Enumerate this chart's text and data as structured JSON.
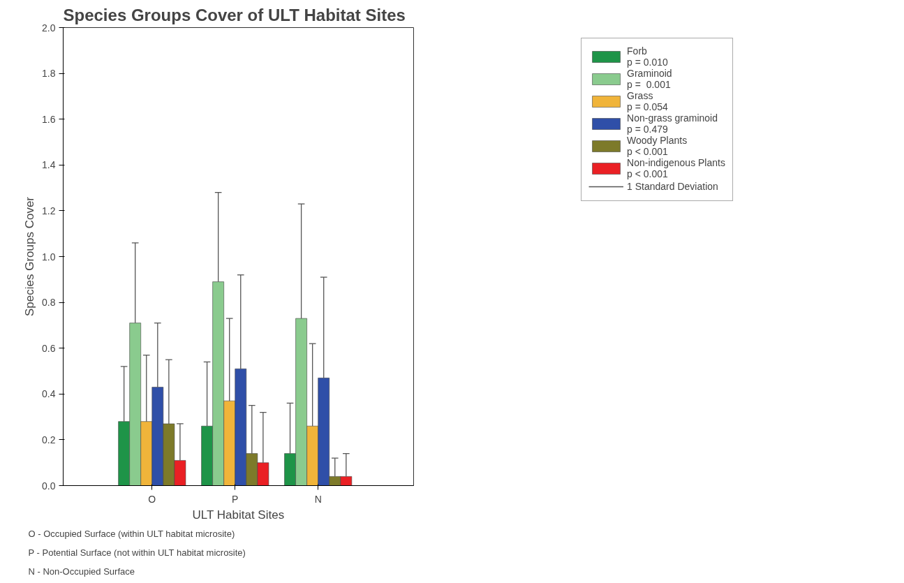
{
  "chart_data": {
    "type": "bar",
    "title": "Species Groups Cover of ULT Habitat Sites",
    "xlabel": "ULT Habitat Sites",
    "ylabel": "Species Groups Cover",
    "categories": [
      "O",
      "P",
      "N"
    ],
    "series": [
      {
        "name": "Forb\np = 0.010",
        "color": "#1e9448",
        "values": [
          0.28,
          0.26,
          0.14
        ],
        "errors": [
          [
            0.28,
            0.52
          ],
          [
            0.26,
            0.54
          ],
          [
            0.14,
            0.36
          ]
        ]
      },
      {
        "name": "Graminoid\np =  0.001",
        "color": "#8acb8e",
        "values": [
          0.71,
          0.89,
          0.73
        ],
        "errors": [
          [
            0.71,
            1.06
          ],
          [
            0.89,
            1.28
          ],
          [
            0.73,
            1.23
          ]
        ]
      },
      {
        "name": "Grass\np = 0.054",
        "color": "#f0b43a",
        "values": [
          0.28,
          0.37,
          0.26
        ],
        "errors": [
          [
            0.28,
            0.57
          ],
          [
            0.37,
            0.73
          ],
          [
            0.26,
            0.62
          ]
        ]
      },
      {
        "name": "Non-grass graminoid\np = 0.479",
        "color": "#2f4fa8",
        "values": [
          0.43,
          0.51,
          0.47
        ],
        "errors": [
          [
            0.43,
            0.71
          ],
          [
            0.51,
            0.92
          ],
          [
            0.47,
            0.91
          ]
        ]
      },
      {
        "name": "Woody Plants\np < 0.001",
        "color": "#7d7a2a",
        "values": [
          0.27,
          0.14,
          0.04
        ],
        "errors": [
          [
            0.27,
            0.55
          ],
          [
            0.14,
            0.35
          ],
          [
            0.04,
            0.12
          ]
        ]
      },
      {
        "name": "Non-indigenous Plants\np < 0.001",
        "color": "#ea2024",
        "values": [
          0.11,
          0.1,
          0.04
        ],
        "errors": [
          [
            0.11,
            0.27
          ],
          [
            0.1,
            0.32
          ],
          [
            0.04,
            0.14
          ]
        ]
      }
    ],
    "ylim": [
      0,
      2
    ],
    "yticks": [
      {
        "value": 0,
        "label": "0.0"
      },
      0.2,
      0.4,
      0.6,
      0.8,
      {
        "value": 1,
        "label": "1.0"
      },
      1.2,
      1.4,
      1.6,
      1.8,
      {
        "value": 2,
        "label": "2.0"
      }
    ],
    "grid": false,
    "legend": "right",
    "annotations": [
      "1 Standard Deviation",
      "O - Occupied Surface (within ULT habitat microsite)",
      "P - Potential Surface (not within ULT habitat microsite)",
      "N - Non-Occupied Surface"
    ]
  }
}
